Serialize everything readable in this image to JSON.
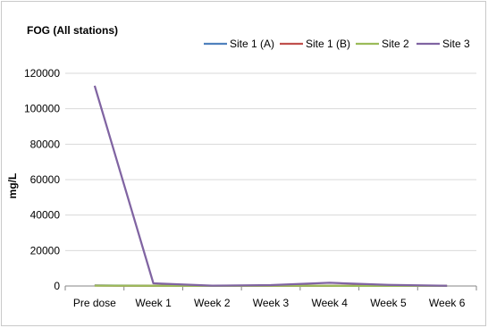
{
  "chart_data": {
    "type": "line",
    "title": "FOG (All stations)",
    "xlabel": "",
    "ylabel": "mg/L",
    "categories": [
      "Pre dose",
      "Week 1",
      "Week 2",
      "Week 3",
      "Week 4",
      "Week 5",
      "Week 6"
    ],
    "ylim": [
      0,
      120000
    ],
    "yticks": [
      "0",
      "20000",
      "40000",
      "60000",
      "80000",
      "100000",
      "120000"
    ],
    "ytick_values": [
      0,
      20000,
      40000,
      60000,
      80000,
      100000,
      120000
    ],
    "grid": true,
    "legend_position": "top",
    "series": [
      {
        "name": "Site 1 (A)",
        "color": "#4F81BD",
        "values": [
          300,
          200,
          100,
          150,
          200,
          100,
          50
        ]
      },
      {
        "name": "Site 1 (B)",
        "color": "#C0504D",
        "values": [
          250,
          150,
          80,
          120,
          150,
          80,
          40
        ]
      },
      {
        "name": "Site 2",
        "color": "#9BBB59",
        "values": [
          200,
          100,
          60,
          100,
          100,
          60,
          30
        ]
      },
      {
        "name": "Site 3",
        "color": "#8064A2",
        "values": [
          113000,
          1500,
          200,
          500,
          1800,
          600,
          100
        ]
      }
    ]
  }
}
